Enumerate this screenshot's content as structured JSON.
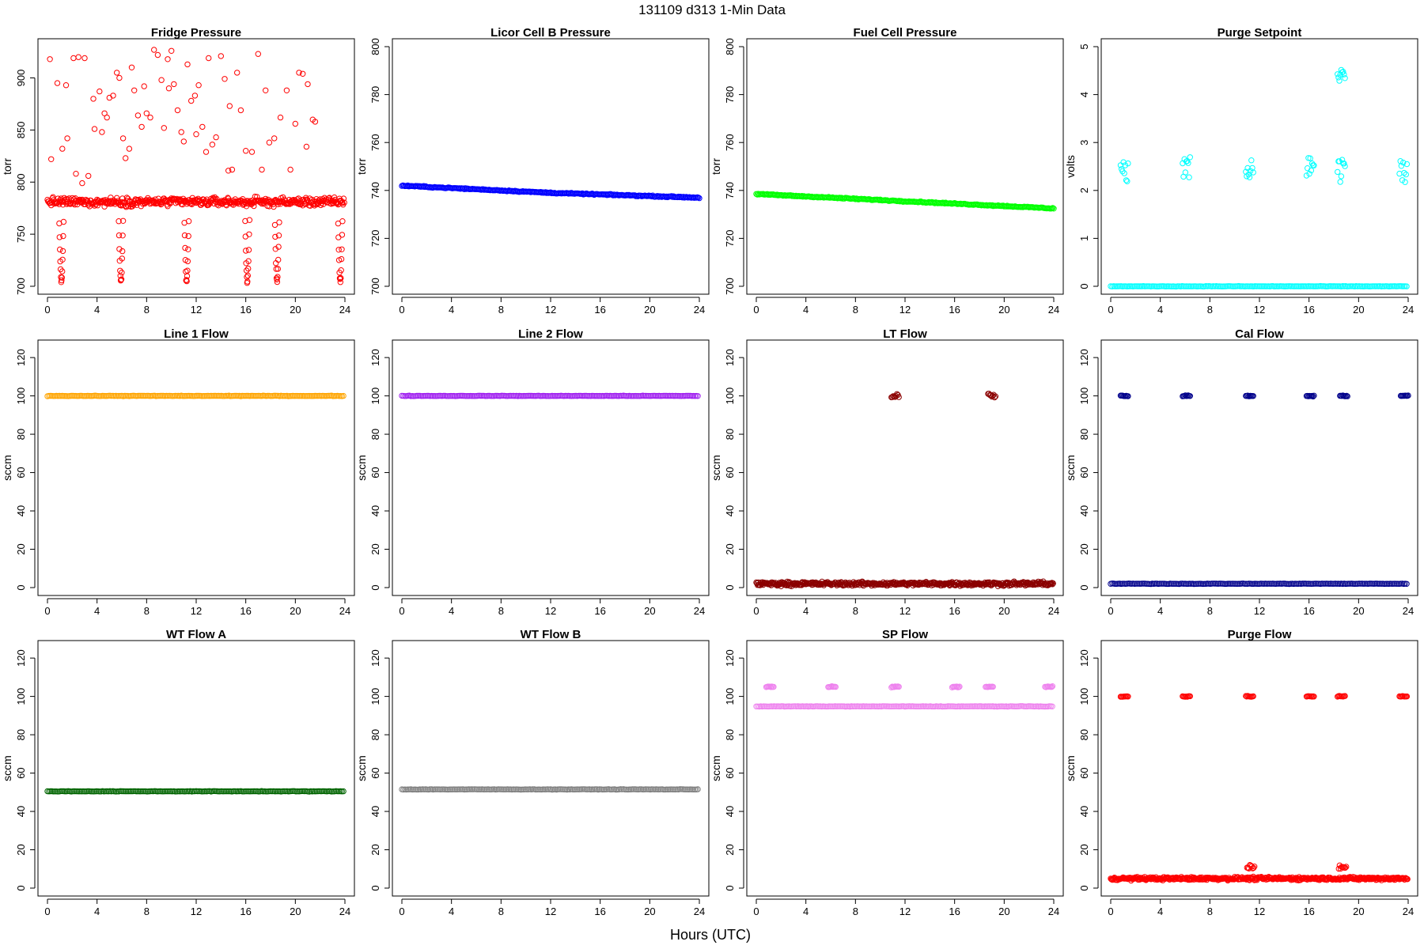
{
  "figure": {
    "title": "131109   d313   1-Min Data",
    "xlabel": "Hours (UTC)"
  },
  "chart_data": [
    {
      "type": "scatter",
      "title": "Fridge Pressure",
      "ylabel": "torr",
      "color": "#ff0000",
      "xlim": [
        0,
        24
      ],
      "xticks": [
        0,
        4,
        8,
        12,
        16,
        20,
        24
      ],
      "ylim": [
        700,
        930
      ],
      "yticks": [
        700,
        750,
        800,
        850,
        900
      ],
      "series": [
        {
          "kind": "band",
          "base": 781,
          "noise": 6,
          "x_range": [
            0,
            24
          ],
          "dips_at": [
            1.1,
            5.9,
            11.2,
            16.1,
            18.5,
            23.6
          ],
          "dip_min": 705
        }
      ],
      "scattered_points": [
        {
          "x": 0.2,
          "y": 918
        },
        {
          "x": 0.3,
          "y": 822
        },
        {
          "x": 0.8,
          "y": 895
        },
        {
          "x": 1.5,
          "y": 893
        },
        {
          "x": 2.1,
          "y": 919
        },
        {
          "x": 2.5,
          "y": 920
        },
        {
          "x": 3.0,
          "y": 919
        },
        {
          "x": 1.2,
          "y": 832
        },
        {
          "x": 1.6,
          "y": 842
        },
        {
          "x": 2.3,
          "y": 808
        },
        {
          "x": 2.8,
          "y": 799
        },
        {
          "x": 3.3,
          "y": 806
        },
        {
          "x": 3.7,
          "y": 880
        },
        {
          "x": 3.8,
          "y": 851
        },
        {
          "x": 4.2,
          "y": 887
        },
        {
          "x": 4.4,
          "y": 848
        },
        {
          "x": 4.8,
          "y": 862
        },
        {
          "x": 5.0,
          "y": 881
        },
        {
          "x": 5.3,
          "y": 883
        },
        {
          "x": 5.6,
          "y": 905
        },
        {
          "x": 5.8,
          "y": 900
        },
        {
          "x": 6.3,
          "y": 823
        },
        {
          "x": 6.6,
          "y": 832
        },
        {
          "x": 6.8,
          "y": 910
        },
        {
          "x": 7.0,
          "y": 888
        },
        {
          "x": 7.3,
          "y": 864
        },
        {
          "x": 7.6,
          "y": 853
        },
        {
          "x": 7.8,
          "y": 892
        },
        {
          "x": 8.3,
          "y": 862
        },
        {
          "x": 8.6,
          "y": 927
        },
        {
          "x": 8.9,
          "y": 922
        },
        {
          "x": 9.2,
          "y": 898
        },
        {
          "x": 9.4,
          "y": 852
        },
        {
          "x": 9.7,
          "y": 918
        },
        {
          "x": 10.0,
          "y": 926
        },
        {
          "x": 10.2,
          "y": 894
        },
        {
          "x": 10.5,
          "y": 869
        },
        {
          "x": 10.8,
          "y": 848
        },
        {
          "x": 11.0,
          "y": 839
        },
        {
          "x": 11.3,
          "y": 913
        },
        {
          "x": 11.6,
          "y": 878
        },
        {
          "x": 11.9,
          "y": 883
        },
        {
          "x": 12.2,
          "y": 893
        },
        {
          "x": 12.5,
          "y": 853
        },
        {
          "x": 12.8,
          "y": 829
        },
        {
          "x": 13.0,
          "y": 919
        },
        {
          "x": 13.3,
          "y": 836
        },
        {
          "x": 13.6,
          "y": 843
        },
        {
          "x": 14.0,
          "y": 921
        },
        {
          "x": 14.3,
          "y": 899
        },
        {
          "x": 14.6,
          "y": 811
        },
        {
          "x": 14.9,
          "y": 812
        },
        {
          "x": 15.3,
          "y": 905
        },
        {
          "x": 15.6,
          "y": 869
        },
        {
          "x": 16.0,
          "y": 830
        },
        {
          "x": 16.5,
          "y": 829
        },
        {
          "x": 17.0,
          "y": 923
        },
        {
          "x": 17.3,
          "y": 812
        },
        {
          "x": 17.6,
          "y": 888
        },
        {
          "x": 17.9,
          "y": 838
        },
        {
          "x": 18.3,
          "y": 842
        },
        {
          "x": 18.8,
          "y": 862
        },
        {
          "x": 19.3,
          "y": 888
        },
        {
          "x": 19.6,
          "y": 812
        },
        {
          "x": 20.0,
          "y": 856
        },
        {
          "x": 20.3,
          "y": 905
        },
        {
          "x": 20.6,
          "y": 904
        },
        {
          "x": 21.0,
          "y": 894
        },
        {
          "x": 21.4,
          "y": 860
        },
        {
          "x": 21.6,
          "y": 858
        },
        {
          "x": 20.9,
          "y": 834
        },
        {
          "x": 9.8,
          "y": 890
        },
        {
          "x": 12.0,
          "y": 846
        },
        {
          "x": 14.7,
          "y": 873
        },
        {
          "x": 8.0,
          "y": 866
        },
        {
          "x": 6.1,
          "y": 842
        },
        {
          "x": 4.6,
          "y": 866
        }
      ]
    },
    {
      "type": "scatter",
      "title": "Licor Cell B Pressure",
      "ylabel": "torr",
      "color": "#0000ff",
      "xlim": [
        0,
        24
      ],
      "xticks": [
        0,
        4,
        8,
        12,
        16,
        20,
        24
      ],
      "ylim": [
        700,
        800
      ],
      "yticks": [
        700,
        720,
        740,
        760,
        780,
        800
      ],
      "series": [
        {
          "kind": "trend",
          "points": [
            {
              "x": 0,
              "y": 742
            },
            {
              "x": 12,
              "y": 739
            },
            {
              "x": 24,
              "y": 737
            }
          ]
        }
      ]
    },
    {
      "type": "scatter",
      "title": "Fuel Cell Pressure",
      "ylabel": "torr",
      "color": "#00ff00",
      "xlim": [
        0,
        24
      ],
      "xticks": [
        0,
        4,
        8,
        12,
        16,
        20,
        24
      ],
      "ylim": [
        700,
        800
      ],
      "yticks": [
        700,
        720,
        740,
        760,
        780,
        800
      ],
      "series": [
        {
          "kind": "trend",
          "points": [
            {
              "x": 0,
              "y": 738.5
            },
            {
              "x": 12,
              "y": 735.5
            },
            {
              "x": 24,
              "y": 732.5
            }
          ]
        }
      ]
    },
    {
      "type": "scatter",
      "title": "Purge Setpoint",
      "ylabel": "volts",
      "color": "#00ffff",
      "xlim": [
        0,
        24
      ],
      "xticks": [
        0,
        4,
        8,
        12,
        16,
        20,
        24
      ],
      "ylim": [
        0,
        5
      ],
      "yticks": [
        0,
        1,
        2,
        3,
        4,
        5
      ],
      "series": [
        {
          "kind": "baseline",
          "y": 0.0,
          "x_range": [
            0,
            24
          ]
        },
        {
          "kind": "clusters",
          "y": 2.43,
          "at": [
            1.1,
            6.1,
            11.2,
            16.1,
            18.6,
            23.6
          ]
        },
        {
          "kind": "clusters",
          "y": 4.4,
          "at": [
            18.6
          ],
          "spread": 0.25
        }
      ]
    },
    {
      "type": "scatter",
      "title": "Line 1 Flow",
      "ylabel": "sccm",
      "color": "#ffa500",
      "xlim": [
        0,
        24
      ],
      "xticks": [
        0,
        4,
        8,
        12,
        16,
        20,
        24
      ],
      "ylim": [
        0,
        125
      ],
      "yticks": [
        0,
        20,
        40,
        60,
        80,
        100,
        120
      ],
      "series": [
        {
          "kind": "baseline",
          "y": 100,
          "x_range": [
            0,
            24
          ]
        }
      ]
    },
    {
      "type": "scatter",
      "title": "Line 2 Flow",
      "ylabel": "sccm",
      "color": "#a020f0",
      "xlim": [
        0,
        24
      ],
      "xticks": [
        0,
        4,
        8,
        12,
        16,
        20,
        24
      ],
      "ylim": [
        0,
        125
      ],
      "yticks": [
        0,
        20,
        40,
        60,
        80,
        100,
        120
      ],
      "series": [
        {
          "kind": "baseline",
          "y": 100,
          "x_range": [
            0,
            24
          ]
        }
      ]
    },
    {
      "type": "scatter",
      "title": "LT Flow",
      "ylabel": "sccm",
      "color": "#8b0000",
      "xlim": [
        0,
        24
      ],
      "xticks": [
        0,
        4,
        8,
        12,
        16,
        20,
        24
      ],
      "ylim": [
        0,
        125
      ],
      "yticks": [
        0,
        20,
        40,
        60,
        80,
        100,
        120
      ],
      "series": [
        {
          "kind": "band",
          "base": 2,
          "noise": 1.5,
          "x_range": [
            0,
            24
          ]
        },
        {
          "kind": "clusters",
          "y": 100,
          "at": [
            11.2,
            19.0
          ],
          "spread": 2
        }
      ]
    },
    {
      "type": "scatter",
      "title": "Cal Flow",
      "ylabel": "sccm",
      "color": "#00008b",
      "xlim": [
        0,
        24
      ],
      "xticks": [
        0,
        4,
        8,
        12,
        16,
        20,
        24
      ],
      "ylim": [
        0,
        125
      ],
      "yticks": [
        0,
        20,
        40,
        60,
        80,
        100,
        120
      ],
      "series": [
        {
          "kind": "baseline",
          "y": 2,
          "x_range": [
            0,
            24
          ]
        },
        {
          "kind": "clusters",
          "y": 100,
          "at": [
            1.1,
            6.1,
            11.2,
            16.1,
            18.8,
            23.7
          ]
        }
      ]
    },
    {
      "type": "scatter",
      "title": "WT Flow A",
      "ylabel": "sccm",
      "color": "#006400",
      "xlim": [
        0,
        24
      ],
      "xticks": [
        0,
        4,
        8,
        12,
        16,
        20,
        24
      ],
      "ylim": [
        0,
        125
      ],
      "yticks": [
        0,
        20,
        40,
        60,
        80,
        100,
        120
      ],
      "series": [
        {
          "kind": "baseline",
          "y": 50.5,
          "x_range": [
            0,
            24
          ]
        }
      ]
    },
    {
      "type": "scatter",
      "title": "WT Flow B",
      "ylabel": "sccm",
      "color": "#808080",
      "xlim": [
        0,
        24
      ],
      "xticks": [
        0,
        4,
        8,
        12,
        16,
        20,
        24
      ],
      "ylim": [
        0,
        125
      ],
      "yticks": [
        0,
        20,
        40,
        60,
        80,
        100,
        120
      ],
      "series": [
        {
          "kind": "baseline",
          "y": 51.5,
          "x_range": [
            0,
            24
          ]
        }
      ]
    },
    {
      "type": "scatter",
      "title": "SP Flow",
      "ylabel": "sccm",
      "color": "#ee82ee",
      "xlim": [
        0,
        24
      ],
      "xticks": [
        0,
        4,
        8,
        12,
        16,
        20,
        24
      ],
      "ylim": [
        0,
        125
      ],
      "yticks": [
        0,
        20,
        40,
        60,
        80,
        100,
        120
      ],
      "series": [
        {
          "kind": "baseline",
          "y": 94.8,
          "x_range": [
            0,
            24
          ]
        },
        {
          "kind": "clusters",
          "y": 105,
          "at": [
            1.1,
            6.1,
            11.2,
            16.1,
            18.8,
            23.6
          ]
        }
      ]
    },
    {
      "type": "scatter",
      "title": "Purge Flow",
      "ylabel": "sccm",
      "color": "#ff0000",
      "xlim": [
        0,
        24
      ],
      "xticks": [
        0,
        4,
        8,
        12,
        16,
        20,
        24
      ],
      "ylim": [
        0,
        125
      ],
      "yticks": [
        0,
        20,
        40,
        60,
        80,
        100,
        120
      ],
      "series": [
        {
          "kind": "band",
          "base": 5,
          "noise": 1.2,
          "x_range": [
            0,
            24
          ]
        },
        {
          "kind": "clusters",
          "y": 100,
          "at": [
            1.1,
            6.1,
            11.2,
            16.1,
            18.6,
            23.6
          ]
        },
        {
          "kind": "clusters",
          "y": 11,
          "at": [
            11.3,
            18.7
          ],
          "spread": 2
        }
      ]
    }
  ]
}
